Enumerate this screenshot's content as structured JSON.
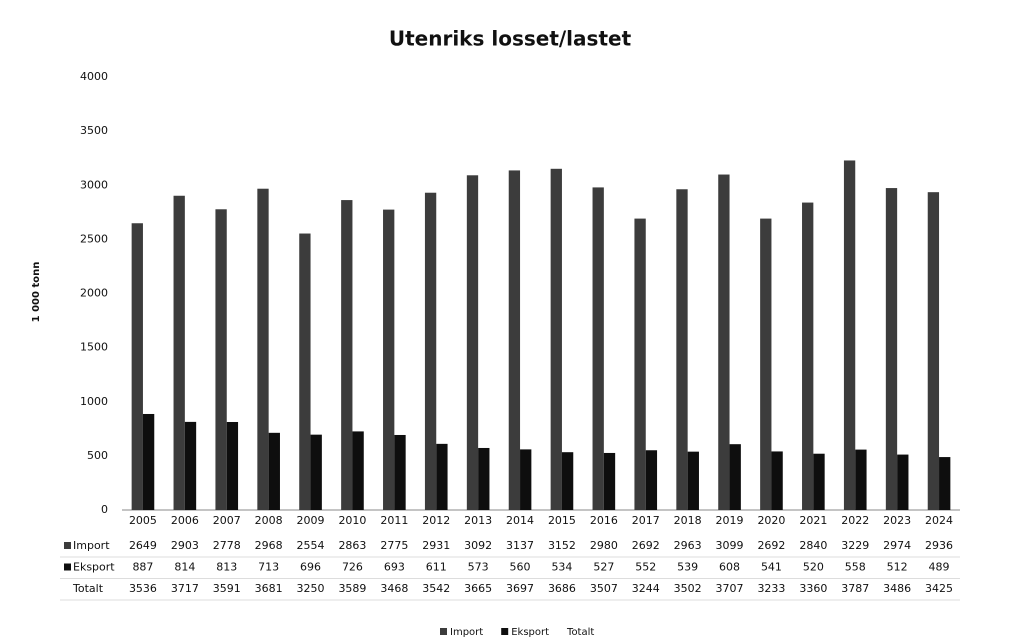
{
  "chart_data": {
    "type": "bar",
    "title": "Utenriks losset/lastet",
    "y_label": "1 000 tonn",
    "categories": [
      "2005",
      "2006",
      "2007",
      "2008",
      "2009",
      "2010",
      "2011",
      "2012",
      "2013",
      "2014",
      "2015",
      "2016",
      "2017",
      "2018",
      "2019",
      "2020",
      "2021",
      "2022",
      "2023",
      "2024"
    ],
    "series": [
      {
        "name": "Import",
        "color": "#3c3c3c",
        "values": [
          2649,
          2903,
          2778,
          2968,
          2554,
          2863,
          2775,
          2931,
          3092,
          3137,
          3152,
          2980,
          2692,
          2963,
          3099,
          2692,
          2840,
          3229,
          2974,
          2936
        ]
      },
      {
        "name": "Eksport",
        "color": "#0e0e0e",
        "values": [
          887,
          814,
          813,
          713,
          696,
          726,
          693,
          611,
          573,
          560,
          534,
          527,
          552,
          539,
          608,
          541,
          520,
          558,
          512,
          489
        ]
      },
      {
        "name": "Totalt",
        "values": [
          3536,
          3717,
          3591,
          3681,
          3250,
          3589,
          3468,
          3542,
          3665,
          3697,
          3686,
          3507,
          3244,
          3502,
          3707,
          3233,
          3360,
          3787,
          3486,
          3425
        ]
      }
    ],
    "ylim": [
      0,
      4000
    ],
    "yticks": [
      0,
      500,
      1000,
      1500,
      2000,
      2500,
      3000,
      3500,
      4000
    ],
    "grid": false,
    "legend": "bottom"
  }
}
